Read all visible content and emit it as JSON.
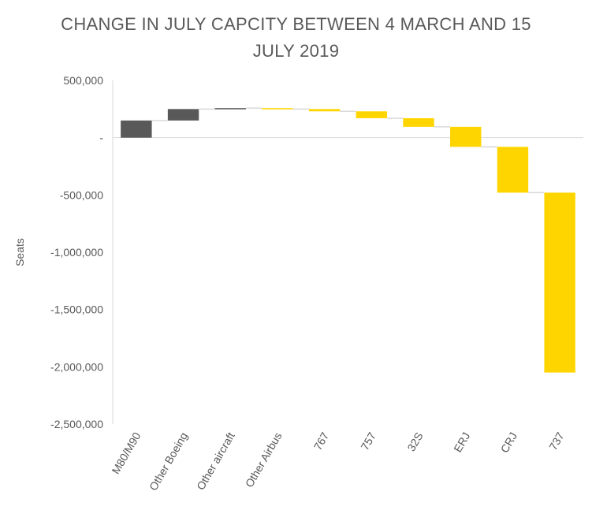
{
  "chart_data": {
    "type": "bar",
    "subtype": "waterfall",
    "title": "CHANGE IN JULY CAPCITY BETWEEN 4 MARCH AND 15 JULY 2019",
    "title_lines": [
      "CHANGE IN JULY CAPCITY BETWEEN 4 MARCH AND 15",
      "JULY 2019"
    ],
    "xlabel": "",
    "ylabel": "Seats",
    "ylim": [
      -2500000,
      500000
    ],
    "yticks": [
      500000,
      0,
      -500000,
      -1000000,
      -1500000,
      -2000000,
      -2500000
    ],
    "ytick_labels": [
      "500,000",
      "-",
      "-500,000",
      "-1,000,000",
      "-1,500,000",
      "-2,000,000",
      "-2,500,000"
    ],
    "categories": [
      "M80/M90",
      "Other Boeing",
      "Other aircraft",
      "Other Airbus",
      "767",
      "757",
      "32S",
      "ERJ",
      "CRJ",
      "737"
    ],
    "values": [
      150000,
      100000,
      8000,
      -8000,
      -20000,
      -60000,
      -75000,
      -175000,
      -400000,
      -1570000
    ],
    "cumulative_end": [
      150000,
      250000,
      258000,
      250000,
      230000,
      170000,
      95000,
      -80000,
      -480000,
      -2050000
    ],
    "colors": {
      "increase": "#595959",
      "decrease": "#FFD500",
      "connector": "#D9D9D9",
      "axis": "#D9D9D9",
      "text": "#595959"
    },
    "grid": false,
    "legend": "none"
  }
}
